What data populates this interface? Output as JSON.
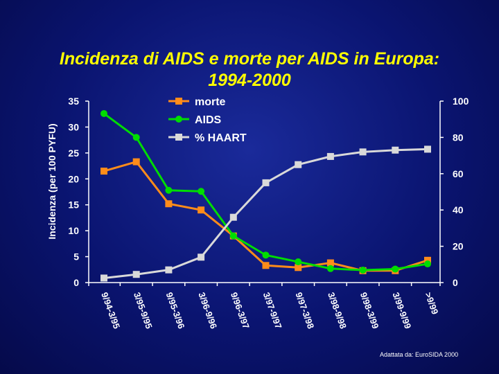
{
  "slide": {
    "title_line1": "Incidenza di AIDS e morte per AIDS in Europa:",
    "title_line2": "1994-2000",
    "source": "Adattata da: EuroSIDA 2000"
  },
  "chart_data": {
    "type": "line",
    "ylabel": "Incidenza (per 100 PYFU)",
    "ylim": [
      0,
      35
    ],
    "y_ticks": [
      0,
      5,
      10,
      15,
      20,
      25,
      30,
      35
    ],
    "y2lim": [
      0,
      100
    ],
    "y2_ticks": [
      0,
      20,
      40,
      60,
      80,
      100
    ],
    "categories": [
      "9/94-3/95",
      "3/95-9/95",
      "9/95-3/96",
      "3/96-9/96",
      "9/96-3/97",
      "3/97-9/97",
      "9/97-3/98",
      "3/98-9/98",
      "9/98-3/99",
      "3/99-9/99",
      ">9/99"
    ],
    "legend_position": "top-center",
    "grid": false,
    "series": [
      {
        "name": "morte",
        "axis": "left",
        "color": "#ff8c1a",
        "marker": "square",
        "values": [
          21.5,
          23.3,
          15.2,
          14,
          9,
          3.3,
          2.9,
          3.8,
          2.3,
          2.3,
          4.3
        ]
      },
      {
        "name": "AIDS",
        "axis": "left",
        "color": "#00dd00",
        "marker": "circle",
        "values": [
          32.6,
          28,
          17.8,
          17.6,
          9,
          5.3,
          4,
          2.7,
          2.4,
          2.6,
          3.6
        ]
      },
      {
        "name": "% HAART",
        "axis": "right",
        "color": "#d9d9d9",
        "marker": "square",
        "values": [
          2.5,
          4.5,
          7,
          14,
          36,
          55,
          65,
          69.5,
          72,
          73,
          73.5
        ]
      }
    ]
  }
}
